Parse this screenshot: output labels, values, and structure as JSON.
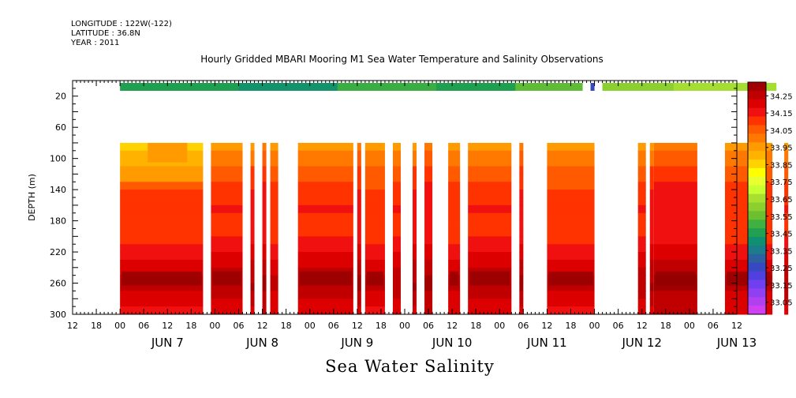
{
  "header": {
    "longitude": "LONGITUDE : 122W(-122)",
    "latitude": "LATITUDE : 36.8N",
    "year": "YEAR : 2011",
    "title": "Hourly Gridded MBARI Mooring M1 Sea Water Temperature and Salinity Observations"
  },
  "bottom_title": "Sea Water Salinity",
  "chart_data": {
    "type": "heatmap",
    "title": "Hourly Gridded MBARI Mooring M1 Sea Water Temperature and Salinity Observations",
    "xlabel": "",
    "ylabel": "DEPTH (m)",
    "colorbar_label": "Sea Water Salinity",
    "y_axis": {
      "range": [
        0,
        300
      ],
      "inverted": true,
      "ticks": [
        20,
        60,
        100,
        140,
        180,
        220,
        260,
        300
      ],
      "labels": [
        "20",
        "60",
        "100",
        "140",
        "180",
        "220",
        "260",
        "300"
      ]
    },
    "x_axis": {
      "range_hours": [
        -12,
        156
      ],
      "hour_tick_labels": [
        "00",
        "06",
        "12",
        "18"
      ],
      "day_labels": [
        "JUN  7",
        "JUN  8",
        "JUN  9",
        "JUN 10",
        "JUN 11",
        "JUN 12",
        "JUN 13"
      ]
    },
    "colorbar": {
      "min": 33.0,
      "step": 0.05,
      "labels": [
        "34.25",
        "34.15",
        "34.05",
        "33.95",
        "33.85",
        "33.75",
        "33.65",
        "33.55",
        "33.45",
        "33.35",
        "33.25",
        "33.15",
        "33.05"
      ],
      "colors": [
        "#a00000",
        "#c00000",
        "#dd0000",
        "#f01010",
        "#ff3300",
        "#ff5a00",
        "#ff7800",
        "#ff9a00",
        "#ffb300",
        "#ffd200",
        "#ffff00",
        "#e8ff30",
        "#c8ff30",
        "#a8e030",
        "#8cd030",
        "#6cc030",
        "#40b040",
        "#20a050",
        "#109070",
        "#1c7c8c",
        "#2c60a0",
        "#3848c0",
        "#5040e0",
        "#7040f0",
        "#9040f0",
        "#b040f0",
        "#d040f0"
      ]
    },
    "surface_series": {
      "depth_m": 10,
      "segments": [
        {
          "start_h": 0,
          "end_h": 117,
          "salinity": 33.45
        },
        {
          "start_h": 119,
          "end_h": 120,
          "salinity": 33.25
        },
        {
          "start_h": 120.5,
          "end_h": 121.5,
          "salinity": null
        },
        {
          "start_h": 122,
          "end_h": 166,
          "salinity": 33.62
        }
      ]
    },
    "profile_data": {
      "depth_range_m": [
        80,
        300
      ],
      "depth_levels_m": [
        80,
        90,
        100,
        110,
        120,
        130,
        140,
        150,
        160,
        170,
        180,
        190,
        200,
        210,
        220,
        230,
        240,
        250,
        260,
        270,
        280,
        290,
        300
      ],
      "segments_hours": [
        [
          0,
          21
        ],
        [
          23,
          31
        ],
        [
          33,
          34
        ],
        [
          36,
          37
        ],
        [
          38,
          40
        ],
        [
          45,
          59
        ],
        [
          60,
          61
        ],
        [
          62,
          67
        ],
        [
          69,
          71
        ],
        [
          74,
          75
        ],
        [
          77,
          79
        ],
        [
          83,
          86
        ],
        [
          88,
          99
        ],
        [
          101,
          102
        ],
        [
          108,
          120
        ],
        [
          131,
          133
        ],
        [
          134,
          135
        ],
        [
          135,
          146
        ],
        [
          153,
          165
        ],
        [
          168,
          169
        ]
      ],
      "typical_profile_salinity": [
        33.95,
        34.0,
        34.0,
        34.05,
        34.05,
        34.08,
        34.1,
        34.1,
        34.12,
        34.1,
        34.1,
        34.1,
        34.12,
        34.15,
        34.17,
        34.2,
        34.22,
        34.24,
        34.25,
        34.22,
        34.2,
        34.18,
        34.17
      ]
    }
  }
}
